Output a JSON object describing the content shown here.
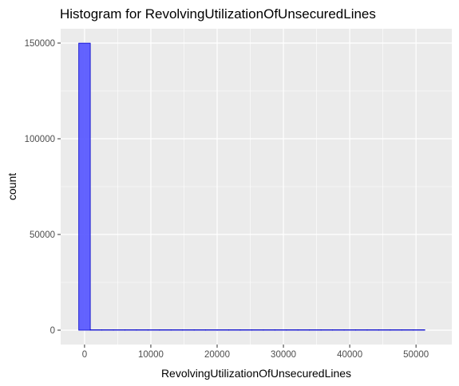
{
  "chart_data": {
    "type": "bar",
    "title": "Histogram for RevolvingUtilizationOfUnsecuredLines",
    "xlabel": "RevolvingUtilizationOfUnsecuredLines",
    "ylabel": "count",
    "xlim": [
      -3600,
      55400
    ],
    "ylim": [
      -7500,
      157500
    ],
    "x_ticks": [
      0,
      10000,
      20000,
      30000,
      40000,
      50000
    ],
    "x_tick_labels": [
      "0",
      "10000",
      "20000",
      "30000",
      "40000",
      "50000"
    ],
    "y_ticks": [
      0,
      50000,
      100000,
      150000
    ],
    "y_tick_labels": [
      "0",
      "50000",
      "100000",
      "150000"
    ],
    "bin_width": 1740,
    "bins": [
      {
        "x0": -870,
        "x1": 870,
        "count": 149950
      },
      {
        "x0": 870,
        "x1": 2610,
        "count": 20
      },
      {
        "x0": 2610,
        "x1": 4350,
        "count": 10
      },
      {
        "x0": 4350,
        "x1": 6090,
        "count": 6
      },
      {
        "x0": 6090,
        "x1": 7830,
        "count": 4
      },
      {
        "x0": 7830,
        "x1": 9570,
        "count": 2
      },
      {
        "x0": 9570,
        "x1": 11310,
        "count": 1
      },
      {
        "x0": 11310,
        "x1": 13050,
        "count": 1
      },
      {
        "x0": 13050,
        "x1": 14790,
        "count": 0
      },
      {
        "x0": 14790,
        "x1": 16530,
        "count": 1
      },
      {
        "x0": 16530,
        "x1": 18270,
        "count": 1
      },
      {
        "x0": 18270,
        "x1": 20010,
        "count": 0
      },
      {
        "x0": 20010,
        "x1": 21750,
        "count": 1
      },
      {
        "x0": 21750,
        "x1": 23490,
        "count": 1
      },
      {
        "x0": 23490,
        "x1": 25230,
        "count": 0
      },
      {
        "x0": 25230,
        "x1": 26970,
        "count": 0
      },
      {
        "x0": 26970,
        "x1": 28710,
        "count": 0
      },
      {
        "x0": 28710,
        "x1": 30450,
        "count": 1
      },
      {
        "x0": 30450,
        "x1": 32190,
        "count": 0
      },
      {
        "x0": 32190,
        "x1": 33930,
        "count": 0
      },
      {
        "x0": 33930,
        "x1": 35670,
        "count": 0
      },
      {
        "x0": 35670,
        "x1": 37410,
        "count": 0
      },
      {
        "x0": 37410,
        "x1": 39150,
        "count": 0
      },
      {
        "x0": 39150,
        "x1": 40890,
        "count": 0
      },
      {
        "x0": 40890,
        "x1": 42630,
        "count": 0
      },
      {
        "x0": 42630,
        "x1": 44370,
        "count": 0
      },
      {
        "x0": 44370,
        "x1": 46110,
        "count": 0
      },
      {
        "x0": 46110,
        "x1": 47850,
        "count": 0
      },
      {
        "x0": 47850,
        "x1": 49590,
        "count": 0
      },
      {
        "x0": 49590,
        "x1": 51330,
        "count": 1
      }
    ],
    "grid": true,
    "colors": {
      "panel": "#ebebeb",
      "grid": "#ffffff",
      "fill": "#5b5bff",
      "outline": "#0000cc",
      "tick_text": "#4d4d4d"
    }
  }
}
